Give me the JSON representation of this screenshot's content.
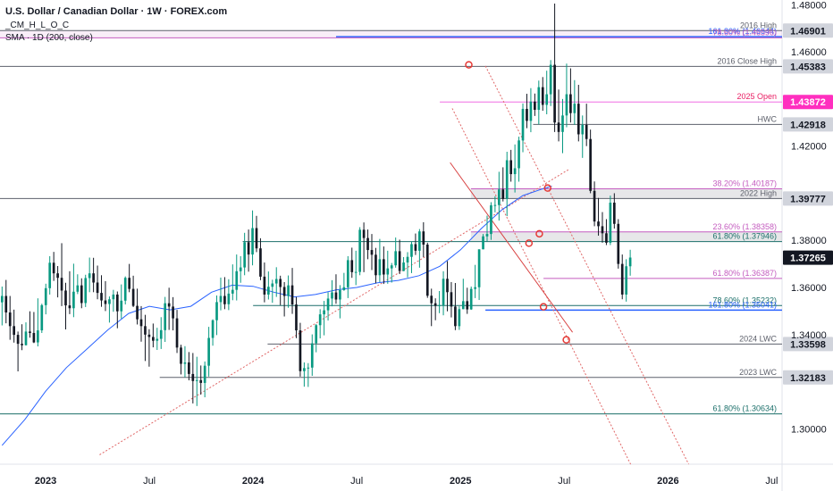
{
  "header": {
    "title": "U.S. Dollar / Canadian Dollar · 1W · FOREX.com",
    "indicator1": "_CM_H_L_O_C",
    "indicator2": "SMA · 1D (200, close)"
  },
  "colors": {
    "up": "#089981",
    "down": "#131722",
    "sma": "#2962ff",
    "trend": "#e06666",
    "level": "#5d606b",
    "fib_pink": "#c45cbf",
    "magenta": "#e91e63",
    "teal": "#1b6f6a",
    "blue": "#2962ff"
  },
  "chart_data": {
    "type": "candlestick",
    "title": "U.S. Dollar / Canadian Dollar · 1W · FOREX.com",
    "ylim": [
      1.285,
      1.482
    ],
    "y_ticks": [
      "1.48000",
      "1.46000",
      "1.42000",
      "1.38000",
      "1.36000",
      "1.34000",
      "1.30000"
    ],
    "y_tick_values": [
      1.48,
      1.46,
      1.42,
      1.38,
      1.36,
      1.34,
      1.3
    ],
    "x_ticks": [
      "2023",
      "Jul",
      "2024",
      "Jul",
      "2025",
      "Jul",
      "2026",
      "Jul"
    ],
    "x_tick_values": [
      2023.0,
      2023.5,
      2024.0,
      2024.5,
      2025.0,
      2025.5,
      2026.0,
      2026.5
    ],
    "xlim": [
      2022.78,
      2026.55
    ],
    "current_price": 1.37265,
    "levels": [
      {
        "label": "2016 High",
        "value": 1.46901,
        "badge": "1.46901",
        "style": "gray",
        "x_start": 2022.78
      },
      {
        "label": "161.80% (1.46644)",
        "value": 1.46644,
        "style": "blue",
        "x_start": 2024.4
      },
      {
        "label": "78.60% (1.46596)",
        "value": 1.46596,
        "style": "pink",
        "x_start": 2022.78
      },
      {
        "label": "2016 Close High",
        "value": 1.45383,
        "badge": "1.45383",
        "style": "gray",
        "x_start": 2022.78
      },
      {
        "label": "2025 Open",
        "value": 1.43872,
        "badge": "1.43872",
        "style": "magenta",
        "x_start": 2024.9
      },
      {
        "label": "HWC",
        "value": 1.42918,
        "badge": "1.42918",
        "style": "gray",
        "x_start": 2025.35
      },
      {
        "label": "38.20% (1.40187)",
        "value": 1.40187,
        "style": "fibzone",
        "x_start": 2025.05
      },
      {
        "label": "2022 High",
        "value": 1.39777,
        "badge": "1.39777",
        "style": "gray",
        "x_start": 2022.78
      },
      {
        "label": "23.60% (1.38358)",
        "value": 1.38358,
        "style": "fibzone",
        "x_start": 2025.05
      },
      {
        "label": "61.80% (1.37946)",
        "value": 1.37946,
        "style": "teal",
        "x_start": 2023.95
      },
      {
        "label": "61.80% (1.36387)",
        "value": 1.36387,
        "style": "pink",
        "x_start": 2025.4
      },
      {
        "label": "78.60% (1.35232)",
        "value": 1.35232,
        "style": "teal",
        "x_start": 2024.0
      },
      {
        "label": "161.80% (1.35041)",
        "value": 1.35041,
        "style": "blue",
        "x_start": 2025.12
      },
      {
        "label": "2024 LWC",
        "value": 1.33598,
        "badge": "1.33598",
        "style": "gray",
        "x_start": 2024.07
      },
      {
        "label": "2023 LWC",
        "value": 1.32183,
        "badge": "1.32183",
        "style": "gray",
        "x_start": 2023.55
      },
      {
        "label": "61.80% (1.30634)",
        "value": 1.30634,
        "style": "teal",
        "x_start": 2022.78
      }
    ],
    "key_points": [
      {
        "x": 2025.04,
        "y": 1.4545
      },
      {
        "x": 2025.42,
        "y": 1.4022
      },
      {
        "x": 2025.38,
        "y": 1.3828
      },
      {
        "x": 2025.33,
        "y": 1.3788
      },
      {
        "x": 2025.4,
        "y": 1.3518
      },
      {
        "x": 2025.51,
        "y": 1.3378
      }
    ],
    "weekly_ohlc": [
      [
        1.3537,
        1.3604,
        1.3439,
        1.3564
      ],
      [
        1.3564,
        1.3632,
        1.3448,
        1.3494
      ],
      [
        1.3494,
        1.3564,
        1.3378,
        1.3436
      ],
      [
        1.3436,
        1.3506,
        1.3366,
        1.3399
      ],
      [
        1.3399,
        1.3413,
        1.3244,
        1.3361
      ],
      [
        1.3361,
        1.3444,
        1.3334,
        1.3355
      ],
      [
        1.3355,
        1.3452,
        1.3354,
        1.3413
      ],
      [
        1.3413,
        1.3499,
        1.3387,
        1.3407
      ],
      [
        1.3407,
        1.3496,
        1.3364,
        1.3367
      ],
      [
        1.3367,
        1.3554,
        1.335,
        1.3418
      ],
      [
        1.3418,
        1.3531,
        1.3407,
        1.3525
      ],
      [
        1.3525,
        1.3616,
        1.3486,
        1.3597
      ],
      [
        1.3597,
        1.3733,
        1.357,
        1.3705
      ],
      [
        1.3705,
        1.3751,
        1.3628,
        1.366
      ],
      [
        1.366,
        1.3691,
        1.3558,
        1.3641
      ],
      [
        1.3641,
        1.3788,
        1.3521,
        1.3587
      ],
      [
        1.3587,
        1.362,
        1.3422,
        1.3524
      ],
      [
        1.3524,
        1.3669,
        1.3487,
        1.3512
      ],
      [
        1.3512,
        1.3701,
        1.3474,
        1.3582
      ],
      [
        1.3582,
        1.3656,
        1.3572,
        1.3609
      ],
      [
        1.3609,
        1.3639,
        1.3512,
        1.3534
      ],
      [
        1.3534,
        1.3654,
        1.3517,
        1.364
      ],
      [
        1.364,
        1.3727,
        1.358,
        1.366
      ],
      [
        1.366,
        1.3726,
        1.358,
        1.3621
      ],
      [
        1.3621,
        1.3693,
        1.355,
        1.3577
      ],
      [
        1.3577,
        1.3652,
        1.3518,
        1.3545
      ],
      [
        1.3545,
        1.3627,
        1.35,
        1.353
      ],
      [
        1.353,
        1.3562,
        1.3451,
        1.355
      ],
      [
        1.355,
        1.359,
        1.3497,
        1.357
      ],
      [
        1.357,
        1.3583,
        1.3427,
        1.3499
      ],
      [
        1.3499,
        1.3613,
        1.3468,
        1.3544
      ],
      [
        1.3544,
        1.3647,
        1.3528,
        1.3641
      ],
      [
        1.3641,
        1.37,
        1.358,
        1.3594
      ],
      [
        1.3594,
        1.365,
        1.3517,
        1.3522
      ],
      [
        1.3522,
        1.3595,
        1.3443,
        1.3465
      ],
      [
        1.3465,
        1.3521,
        1.337,
        1.3436
      ],
      [
        1.3436,
        1.3484,
        1.3288,
        1.34
      ],
      [
        1.34,
        1.3423,
        1.3264,
        1.339
      ],
      [
        1.339,
        1.3447,
        1.3346,
        1.3374
      ],
      [
        1.3374,
        1.3429,
        1.3335,
        1.3382
      ],
      [
        1.3382,
        1.3474,
        1.3339,
        1.3419
      ],
      [
        1.3419,
        1.356,
        1.3369,
        1.3533
      ],
      [
        1.3533,
        1.3599,
        1.342,
        1.3519
      ],
      [
        1.3519,
        1.3559,
        1.3418,
        1.3469
      ],
      [
        1.3469,
        1.3505,
        1.3322,
        1.3345
      ],
      [
        1.3345,
        1.3357,
        1.3231,
        1.3276
      ],
      [
        1.3276,
        1.3351,
        1.3219,
        1.3282
      ],
      [
        1.3282,
        1.3326,
        1.3206,
        1.3233
      ],
      [
        1.3233,
        1.3322,
        1.3108,
        1.3203
      ],
      [
        1.3203,
        1.3306,
        1.3097,
        1.3207
      ],
      [
        1.3207,
        1.3269,
        1.3145,
        1.3195
      ],
      [
        1.3195,
        1.3286,
        1.3134,
        1.3268
      ],
      [
        1.3268,
        1.3433,
        1.3222,
        1.3386
      ],
      [
        1.3386,
        1.3465,
        1.3353,
        1.3461
      ],
      [
        1.3461,
        1.3566,
        1.3398,
        1.3538
      ],
      [
        1.3538,
        1.3642,
        1.3503,
        1.3564
      ],
      [
        1.3564,
        1.3644,
        1.3508,
        1.3529
      ],
      [
        1.3529,
        1.3635,
        1.3504,
        1.3574
      ],
      [
        1.3574,
        1.3698,
        1.3546,
        1.359
      ],
      [
        1.359,
        1.374,
        1.3545,
        1.3669
      ],
      [
        1.3669,
        1.3733,
        1.362,
        1.3685
      ],
      [
        1.3685,
        1.3832,
        1.3652,
        1.3792
      ],
      [
        1.3792,
        1.3846,
        1.3667,
        1.374
      ],
      [
        1.374,
        1.3927,
        1.3694,
        1.3852
      ],
      [
        1.3852,
        1.3904,
        1.375,
        1.3766
      ],
      [
        1.3766,
        1.3809,
        1.3631,
        1.3646
      ],
      [
        1.3646,
        1.3706,
        1.3537,
        1.357
      ],
      [
        1.357,
        1.3668,
        1.3549,
        1.3603
      ],
      [
        1.3603,
        1.3633,
        1.3535,
        1.3617
      ],
      [
        1.3617,
        1.3686,
        1.356,
        1.3636
      ],
      [
        1.3636,
        1.365,
        1.3525,
        1.3602
      ],
      [
        1.3602,
        1.3623,
        1.3477,
        1.3564
      ],
      [
        1.3564,
        1.3651,
        1.3514,
        1.3609
      ],
      [
        1.3609,
        1.3683,
        1.3488,
        1.3528
      ],
      [
        1.3528,
        1.356,
        1.3385,
        1.3418
      ],
      [
        1.3418,
        1.345,
        1.3222,
        1.3245
      ],
      [
        1.3245,
        1.3282,
        1.3179,
        1.3258
      ],
      [
        1.3258,
        1.3279,
        1.3178,
        1.326
      ],
      [
        1.326,
        1.3401,
        1.3225,
        1.3363
      ],
      [
        1.3363,
        1.3445,
        1.3325,
        1.344
      ],
      [
        1.344,
        1.3508,
        1.3384,
        1.3486
      ],
      [
        1.3486,
        1.3543,
        1.3397,
        1.3503
      ],
      [
        1.3503,
        1.358,
        1.346,
        1.3553
      ],
      [
        1.3553,
        1.3631,
        1.352,
        1.3579
      ],
      [
        1.3579,
        1.3656,
        1.3531,
        1.3549
      ],
      [
        1.3549,
        1.361,
        1.3469,
        1.3589
      ],
      [
        1.3589,
        1.3662,
        1.3586,
        1.3601
      ],
      [
        1.3601,
        1.3733,
        1.3555,
        1.3716
      ],
      [
        1.3716,
        1.3769,
        1.3641,
        1.3665
      ],
      [
        1.3665,
        1.3756,
        1.361,
        1.3666
      ],
      [
        1.3666,
        1.3856,
        1.3652,
        1.3845
      ],
      [
        1.3845,
        1.3876,
        1.3665,
        1.381
      ],
      [
        1.381,
        1.3846,
        1.372,
        1.3759
      ],
      [
        1.3759,
        1.3827,
        1.3674,
        1.3739
      ],
      [
        1.3739,
        1.3768,
        1.3618,
        1.3652
      ],
      [
        1.3652,
        1.3806,
        1.3623,
        1.372
      ],
      [
        1.372,
        1.3774,
        1.3615,
        1.3655
      ],
      [
        1.3655,
        1.3756,
        1.3616,
        1.3681
      ],
      [
        1.3681,
        1.3704,
        1.3621,
        1.3694
      ],
      [
        1.3694,
        1.3812,
        1.3684,
        1.3754
      ],
      [
        1.3754,
        1.3803,
        1.3657,
        1.367
      ],
      [
        1.367,
        1.3729,
        1.3669,
        1.3706
      ],
      [
        1.3706,
        1.375,
        1.3643,
        1.373
      ],
      [
        1.373,
        1.3796,
        1.3661,
        1.3784
      ],
      [
        1.3784,
        1.3829,
        1.3738,
        1.3756
      ],
      [
        1.3756,
        1.3848,
        1.3684,
        1.3838
      ],
      [
        1.3838,
        1.3877,
        1.3729,
        1.3782
      ],
      [
        1.3782,
        1.379,
        1.3556,
        1.3565
      ],
      [
        1.3565,
        1.3595,
        1.3436,
        1.3533
      ],
      [
        1.3533,
        1.3554,
        1.3461,
        1.3522
      ],
      [
        1.3522,
        1.3585,
        1.3491,
        1.3525
      ],
      [
        1.3525,
        1.3669,
        1.3482,
        1.3637
      ],
      [
        1.3637,
        1.3712,
        1.3499,
        1.358
      ],
      [
        1.358,
        1.3623,
        1.3473,
        1.3519
      ],
      [
        1.3519,
        1.3619,
        1.3419,
        1.3436
      ],
      [
        1.3436,
        1.352,
        1.342,
        1.3508
      ],
      [
        1.3508,
        1.3637,
        1.3508,
        1.3542
      ],
      [
        1.3542,
        1.3599,
        1.3488,
        1.3507
      ],
      [
        1.3507,
        1.3604,
        1.3505,
        1.3594
      ],
      [
        1.3594,
        1.3696,
        1.3555,
        1.3601
      ],
      [
        1.3601,
        1.3762,
        1.3547,
        1.3762
      ],
      [
        1.3762,
        1.3827,
        1.3762,
        1.3817
      ],
      [
        1.3817,
        1.3905,
        1.3795,
        1.3827
      ],
      [
        1.3827,
        1.3962,
        1.3802,
        1.3949
      ],
      [
        1.3949,
        1.3987,
        1.3919,
        1.395
      ],
      [
        1.395,
        1.4091,
        1.3884,
        1.4016
      ],
      [
        1.4016,
        1.411,
        1.3965,
        1.3976
      ],
      [
        1.3976,
        1.4176,
        1.3903,
        1.414
      ],
      [
        1.414,
        1.4184,
        1.4049,
        1.4081
      ],
      [
        1.4081,
        1.4207,
        1.4003,
        1.4106
      ],
      [
        1.4106,
        1.424,
        1.4049,
        1.4224
      ],
      [
        1.4224,
        1.4381,
        1.4174,
        1.4358
      ],
      [
        1.4358,
        1.4422,
        1.4276,
        1.4307
      ],
      [
        1.4307,
        1.4446,
        1.4259,
        1.4389
      ],
      [
        1.4389,
        1.4423,
        1.4328,
        1.4354
      ],
      [
        1.4354,
        1.4478,
        1.4292,
        1.445
      ],
      [
        1.445,
        1.4493,
        1.435,
        1.4375
      ],
      [
        1.4375,
        1.452,
        1.4335,
        1.442
      ],
      [
        1.442,
        1.4565,
        1.437,
        1.4545
      ],
      [
        1.4545,
        1.4805,
        1.426,
        1.43
      ],
      [
        1.43,
        1.444,
        1.422,
        1.426
      ],
      [
        1.426,
        1.44,
        1.417,
        1.433
      ],
      [
        1.433,
        1.455,
        1.428,
        1.442
      ],
      [
        1.442,
        1.453,
        1.43,
        1.434
      ],
      [
        1.434,
        1.448,
        1.429,
        1.438
      ],
      [
        1.438,
        1.446,
        1.422,
        1.425
      ],
      [
        1.425,
        1.433,
        1.415,
        1.429
      ],
      [
        1.429,
        1.438,
        1.42,
        1.423
      ],
      [
        1.423,
        1.427,
        1.4,
        1.401
      ],
      [
        1.401,
        1.405,
        1.386,
        1.388
      ],
      [
        1.388,
        1.398,
        1.382,
        1.386
      ],
      [
        1.386,
        1.392,
        1.379,
        1.383
      ],
      [
        1.383,
        1.389,
        1.378,
        1.379
      ],
      [
        1.379,
        1.399,
        1.378,
        1.396
      ],
      [
        1.396,
        1.4,
        1.385,
        1.387
      ],
      [
        1.387,
        1.389,
        1.368,
        1.37
      ],
      [
        1.37,
        1.374,
        1.355,
        1.357
      ],
      [
        1.357,
        1.372,
        1.354,
        1.369
      ],
      [
        1.369,
        1.376,
        1.365,
        1.3727
      ]
    ],
    "sma_200_1d": [
      [
        2022.79,
        1.293
      ],
      [
        2022.9,
        1.304
      ],
      [
        2023.0,
        1.316
      ],
      [
        2023.1,
        1.326
      ],
      [
        2023.2,
        1.334
      ],
      [
        2023.3,
        1.342
      ],
      [
        2023.4,
        1.349
      ],
      [
        2023.5,
        1.352
      ],
      [
        2023.6,
        1.3505
      ],
      [
        2023.7,
        1.352
      ],
      [
        2023.8,
        1.358
      ],
      [
        2023.9,
        1.361
      ],
      [
        2024.0,
        1.3605
      ],
      [
        2024.1,
        1.358
      ],
      [
        2024.2,
        1.356
      ],
      [
        2024.3,
        1.357
      ],
      [
        2024.4,
        1.359
      ],
      [
        2024.5,
        1.36
      ],
      [
        2024.6,
        1.362
      ],
      [
        2024.7,
        1.363
      ],
      [
        2024.8,
        1.365
      ],
      [
        2024.9,
        1.369
      ],
      [
        2025.0,
        1.376
      ],
      [
        2025.1,
        1.385
      ],
      [
        2025.2,
        1.393
      ],
      [
        2025.3,
        1.399
      ],
      [
        2025.4,
        1.402
      ],
      [
        2025.44,
        1.403
      ]
    ],
    "trendlines": [
      {
        "from": [
          2023.26,
          1.289
        ],
        "to": [
          2025.52,
          1.41
        ],
        "style": "dotted"
      },
      {
        "from": [
          2024.96,
          1.436
        ],
        "to": [
          2025.82,
          1.285
        ],
        "style": "dotted"
      },
      {
        "from": [
          2025.12,
          1.454
        ],
        "to": [
          2026.1,
          1.285
        ],
        "style": "dotted"
      },
      {
        "from": [
          2024.95,
          1.413
        ],
        "to": [
          2025.54,
          1.341
        ],
        "style": "solid"
      }
    ]
  }
}
